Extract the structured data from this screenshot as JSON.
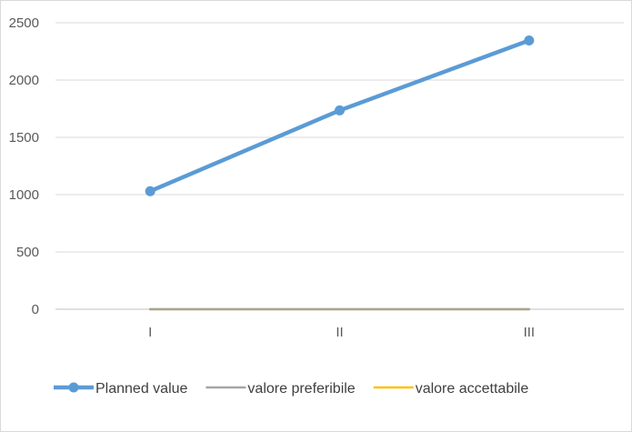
{
  "chart_data": {
    "type": "line",
    "categories": [
      "I",
      "II",
      "III"
    ],
    "ylim": [
      0,
      2500
    ],
    "yticks": [
      0,
      500,
      1000,
      1500,
      2000,
      2500
    ],
    "grid": true,
    "legend_position": "bottom",
    "series": [
      {
        "name": "Planned value",
        "values": [
          1030,
          1735,
          2345
        ],
        "color": "#5b9bd5",
        "markers": true
      },
      {
        "name": "valore preferibile",
        "values": [
          0,
          0,
          0
        ],
        "color": "#a5a5a5",
        "markers": false
      },
      {
        "name": "valore accettabile",
        "values": [
          0,
          0,
          0
        ],
        "color": "#ffc000",
        "markers": false
      }
    ]
  }
}
